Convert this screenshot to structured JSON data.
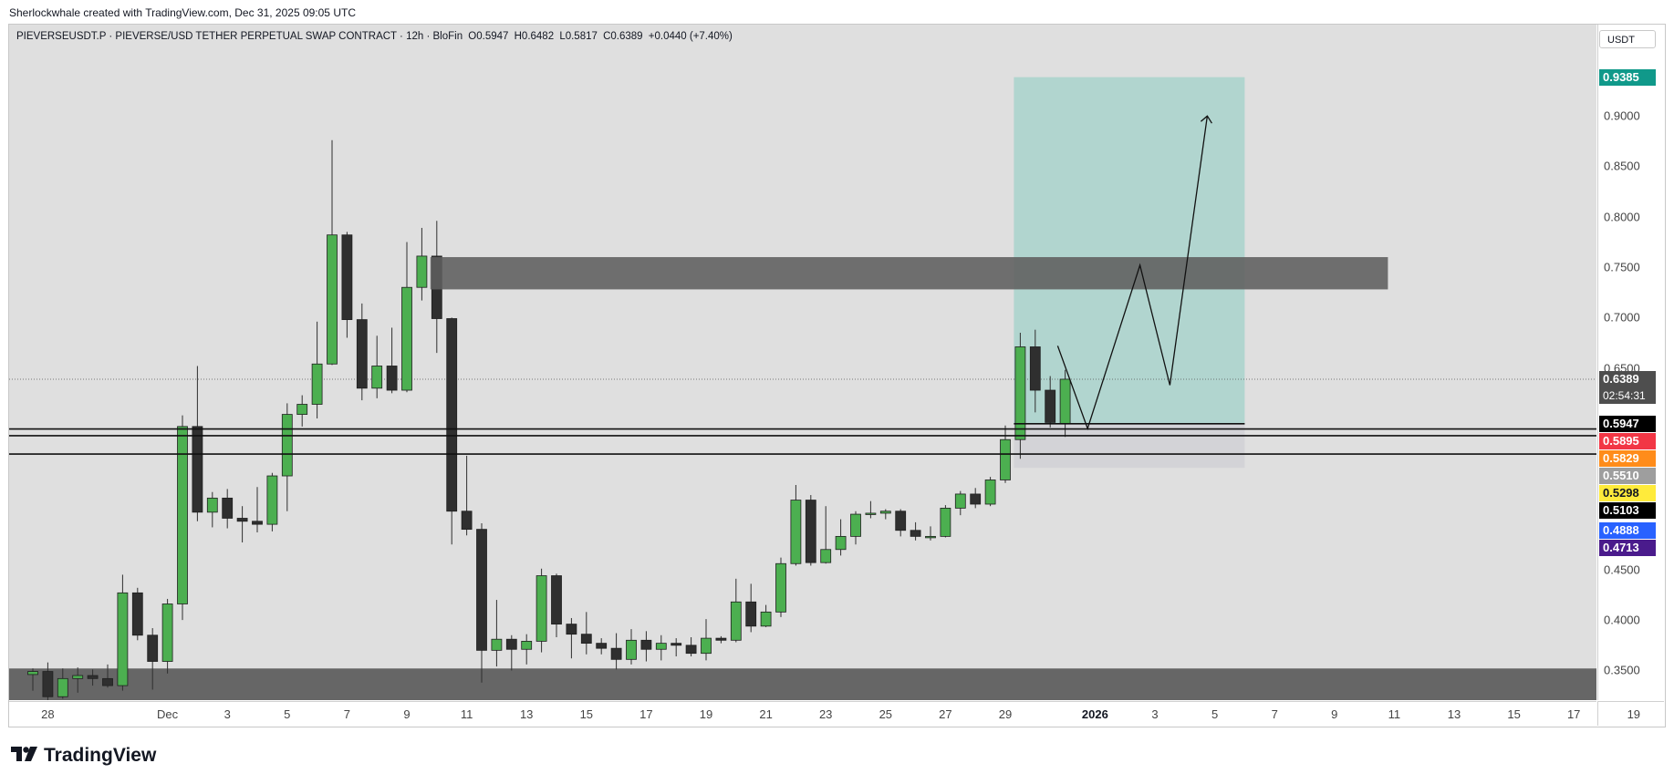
{
  "caption": "Sherlockwhale created with TradingView.com, Dec 31, 2025 09:05 UTC",
  "legend": {
    "symbol": "PIEVERSEUSDT.P · PIEVERSE/USD TETHER PERPETUAL SWAP CONTRACT · 12h · BloFin",
    "open": "O0.5947",
    "high": "H0.6482",
    "low": "L0.5817",
    "close": "C0.6389",
    "change": "+0.0440 (+7.40%)"
  },
  "unit": "USDT",
  "brand": "TradingView",
  "chart_data": {
    "type": "candlestick",
    "timeframe": "12h",
    "y_axis": {
      "ticks": [
        0.35,
        0.4,
        0.45,
        0.5,
        0.55,
        0.6,
        0.65,
        0.7,
        0.75,
        0.8,
        0.85,
        0.9
      ],
      "tick_labels": [
        "0.3500",
        "0.4000",
        "0.4500",
        "",
        "",
        "",
        "0.6500",
        "0.7000",
        "0.7500",
        "0.8000",
        "0.8500",
        "0.9000"
      ],
      "range": [
        0.3206,
        0.9906
      ]
    },
    "x_axis": {
      "ticks": [
        {
          "label": "28",
          "index": 1
        },
        {
          "label": "Dec",
          "index": 9
        },
        {
          "label": "3",
          "index": 13
        },
        {
          "label": "5",
          "index": 17
        },
        {
          "label": "7",
          "index": 21
        },
        {
          "label": "9",
          "index": 25
        },
        {
          "label": "11",
          "index": 29
        },
        {
          "label": "13",
          "index": 33
        },
        {
          "label": "15",
          "index": 37
        },
        {
          "label": "17",
          "index": 41
        },
        {
          "label": "19",
          "index": 45
        },
        {
          "label": "21",
          "index": 49
        },
        {
          "label": "23",
          "index": 53
        },
        {
          "label": "25",
          "index": 57
        },
        {
          "label": "27",
          "index": 61
        },
        {
          "label": "29",
          "index": 65
        },
        {
          "label": "2026",
          "index": 71,
          "bold": true
        },
        {
          "label": "3",
          "index": 75
        },
        {
          "label": "5",
          "index": 79
        },
        {
          "label": "7",
          "index": 83
        },
        {
          "label": "9",
          "index": 87
        },
        {
          "label": "11",
          "index": 91
        },
        {
          "label": "13",
          "index": 95
        },
        {
          "label": "15",
          "index": 99
        },
        {
          "label": "17",
          "index": 103
        },
        {
          "label": "19",
          "index": 107
        }
      ],
      "range_index": [
        0,
        107
      ]
    },
    "candles": [
      {
        "o": 0.346,
        "h": 0.352,
        "l": 0.33,
        "c": 0.349
      },
      {
        "o": 0.349,
        "h": 0.358,
        "l": 0.32,
        "c": 0.324
      },
      {
        "o": 0.324,
        "h": 0.352,
        "l": 0.322,
        "c": 0.342
      },
      {
        "o": 0.342,
        "h": 0.353,
        "l": 0.328,
        "c": 0.345
      },
      {
        "o": 0.345,
        "h": 0.351,
        "l": 0.335,
        "c": 0.342
      },
      {
        "o": 0.342,
        "h": 0.356,
        "l": 0.333,
        "c": 0.335
      },
      {
        "o": 0.335,
        "h": 0.445,
        "l": 0.33,
        "c": 0.427
      },
      {
        "o": 0.427,
        "h": 0.432,
        "l": 0.38,
        "c": 0.385
      },
      {
        "o": 0.385,
        "h": 0.392,
        "l": 0.331,
        "c": 0.359
      },
      {
        "o": 0.359,
        "h": 0.421,
        "l": 0.347,
        "c": 0.416
      },
      {
        "o": 0.416,
        "h": 0.603,
        "l": 0.4,
        "c": 0.592
      },
      {
        "o": 0.592,
        "h": 0.652,
        "l": 0.498,
        "c": 0.507
      },
      {
        "o": 0.507,
        "h": 0.527,
        "l": 0.492,
        "c": 0.521
      },
      {
        "o": 0.521,
        "h": 0.53,
        "l": 0.491,
        "c": 0.501
      },
      {
        "o": 0.501,
        "h": 0.513,
        "l": 0.477,
        "c": 0.498
      },
      {
        "o": 0.498,
        "h": 0.532,
        "l": 0.487,
        "c": 0.495
      },
      {
        "o": 0.495,
        "h": 0.546,
        "l": 0.488,
        "c": 0.543
      },
      {
        "o": 0.543,
        "h": 0.615,
        "l": 0.508,
        "c": 0.604
      },
      {
        "o": 0.604,
        "h": 0.623,
        "l": 0.592,
        "c": 0.614
      },
      {
        "o": 0.614,
        "h": 0.696,
        "l": 0.6,
        "c": 0.654
      },
      {
        "o": 0.654,
        "h": 0.876,
        "l": 0.653,
        "c": 0.782
      },
      {
        "o": 0.782,
        "h": 0.785,
        "l": 0.68,
        "c": 0.698
      },
      {
        "o": 0.698,
        "h": 0.714,
        "l": 0.618,
        "c": 0.63
      },
      {
        "o": 0.63,
        "h": 0.682,
        "l": 0.62,
        "c": 0.652
      },
      {
        "o": 0.652,
        "h": 0.69,
        "l": 0.625,
        "c": 0.628
      },
      {
        "o": 0.628,
        "h": 0.775,
        "l": 0.626,
        "c": 0.73
      },
      {
        "o": 0.73,
        "h": 0.789,
        "l": 0.717,
        "c": 0.761
      },
      {
        "o": 0.761,
        "h": 0.796,
        "l": 0.665,
        "c": 0.699
      },
      {
        "o": 0.699,
        "h": 0.7,
        "l": 0.475,
        "c": 0.508
      },
      {
        "o": 0.508,
        "h": 0.563,
        "l": 0.484,
        "c": 0.49
      },
      {
        "o": 0.49,
        "h": 0.496,
        "l": 0.338,
        "c": 0.37
      },
      {
        "o": 0.37,
        "h": 0.42,
        "l": 0.354,
        "c": 0.381
      },
      {
        "o": 0.381,
        "h": 0.385,
        "l": 0.35,
        "c": 0.371
      },
      {
        "o": 0.371,
        "h": 0.386,
        "l": 0.356,
        "c": 0.379
      },
      {
        "o": 0.379,
        "h": 0.451,
        "l": 0.368,
        "c": 0.444
      },
      {
        "o": 0.444,
        "h": 0.446,
        "l": 0.383,
        "c": 0.396
      },
      {
        "o": 0.396,
        "h": 0.402,
        "l": 0.362,
        "c": 0.386
      },
      {
        "o": 0.386,
        "h": 0.408,
        "l": 0.366,
        "c": 0.377
      },
      {
        "o": 0.377,
        "h": 0.382,
        "l": 0.366,
        "c": 0.372
      },
      {
        "o": 0.372,
        "h": 0.387,
        "l": 0.351,
        "c": 0.361
      },
      {
        "o": 0.361,
        "h": 0.391,
        "l": 0.356,
        "c": 0.38
      },
      {
        "o": 0.38,
        "h": 0.389,
        "l": 0.359,
        "c": 0.371
      },
      {
        "o": 0.371,
        "h": 0.385,
        "l": 0.36,
        "c": 0.377
      },
      {
        "o": 0.377,
        "h": 0.382,
        "l": 0.364,
        "c": 0.375
      },
      {
        "o": 0.375,
        "h": 0.383,
        "l": 0.364,
        "c": 0.367
      },
      {
        "o": 0.367,
        "h": 0.401,
        "l": 0.36,
        "c": 0.382
      },
      {
        "o": 0.382,
        "h": 0.384,
        "l": 0.377,
        "c": 0.38
      },
      {
        "o": 0.38,
        "h": 0.441,
        "l": 0.378,
        "c": 0.418
      },
      {
        "o": 0.418,
        "h": 0.436,
        "l": 0.388,
        "c": 0.394
      },
      {
        "o": 0.394,
        "h": 0.415,
        "l": 0.393,
        "c": 0.408
      },
      {
        "o": 0.408,
        "h": 0.462,
        "l": 0.403,
        "c": 0.456
      },
      {
        "o": 0.456,
        "h": 0.534,
        "l": 0.454,
        "c": 0.519
      },
      {
        "o": 0.519,
        "h": 0.524,
        "l": 0.454,
        "c": 0.457
      },
      {
        "o": 0.457,
        "h": 0.513,
        "l": 0.456,
        "c": 0.47
      },
      {
        "o": 0.47,
        "h": 0.5,
        "l": 0.464,
        "c": 0.483
      },
      {
        "o": 0.483,
        "h": 0.508,
        "l": 0.475,
        "c": 0.505
      },
      {
        "o": 0.505,
        "h": 0.518,
        "l": 0.501,
        "c": 0.506
      },
      {
        "o": 0.506,
        "h": 0.51,
        "l": 0.5,
        "c": 0.508
      },
      {
        "o": 0.508,
        "h": 0.51,
        "l": 0.483,
        "c": 0.489
      },
      {
        "o": 0.489,
        "h": 0.497,
        "l": 0.479,
        "c": 0.483
      },
      {
        "o": 0.483,
        "h": 0.493,
        "l": 0.479,
        "c": 0.483
      },
      {
        "o": 0.483,
        "h": 0.514,
        "l": 0.482,
        "c": 0.511
      },
      {
        "o": 0.511,
        "h": 0.528,
        "l": 0.504,
        "c": 0.525
      },
      {
        "o": 0.525,
        "h": 0.531,
        "l": 0.511,
        "c": 0.515
      },
      {
        "o": 0.515,
        "h": 0.542,
        "l": 0.513,
        "c": 0.539
      },
      {
        "o": 0.539,
        "h": 0.593,
        "l": 0.536,
        "c": 0.579
      },
      {
        "o": 0.579,
        "h": 0.685,
        "l": 0.56,
        "c": 0.671
      },
      {
        "o": 0.671,
        "h": 0.688,
        "l": 0.606,
        "c": 0.628
      },
      {
        "o": 0.628,
        "h": 0.642,
        "l": 0.591,
        "c": 0.596
      },
      {
        "o": 0.5947,
        "h": 0.6482,
        "l": 0.5817,
        "c": 0.6389
      }
    ],
    "colors": {
      "up": "#4caf50",
      "down": "#2f2f2f",
      "target_zone": "#a9d3cc",
      "stop_zone": "#d2d2d6",
      "supply_zone": "#5f5f5f"
    },
    "annotations": {
      "supply_zone": {
        "from_index": 27,
        "to_index": 91,
        "low": 0.728,
        "high": 0.76
      },
      "bottom_zone": {
        "from_index": 0,
        "to_index": 107,
        "low": 0.32,
        "high": 0.352
      },
      "target_box": {
        "from_index": 66,
        "to_index": 81,
        "top": 0.9385,
        "entry": 0.5947,
        "stop": 0.551
      },
      "horizontal_lines": [
        0.5895,
        0.5829,
        0.5647
      ],
      "projection_path": [
        {
          "i": 68.5,
          "p": 0.672
        },
        {
          "i": 70.5,
          "p": 0.59
        },
        {
          "i": 74,
          "p": 0.752
        },
        {
          "i": 76,
          "p": 0.633
        },
        {
          "i": 78.5,
          "p": 0.9
        }
      ]
    },
    "price_tags": [
      {
        "value": "0.9385",
        "bg": "#10998a",
        "fg": "#ffffff"
      },
      {
        "value": "0.6389",
        "bg": "#4e4e4e",
        "fg": "#ffffff",
        "sub": "02:54:31"
      },
      {
        "value": "0.5947",
        "bg": "#000000",
        "fg": "#ffffff"
      },
      {
        "value": "0.5895",
        "bg": "#f23645",
        "fg": "#ffffff"
      },
      {
        "value": "0.5829",
        "bg": "#ff8c1a",
        "fg": "#ffffff"
      },
      {
        "value": "0.5510",
        "bg": "#9e9e9e",
        "fg": "#ffffff"
      },
      {
        "value": "0.5298",
        "bg": "#ffeb3b",
        "fg": "#131722"
      },
      {
        "value": "0.5103",
        "bg": "#000000",
        "fg": "#ffffff"
      },
      {
        "value": "0.4888",
        "bg": "#2962ff",
        "fg": "#ffffff"
      },
      {
        "value": "0.4713",
        "bg": "#4a1b8c",
        "fg": "#ffffff"
      }
    ],
    "last_price": 0.6389
  }
}
